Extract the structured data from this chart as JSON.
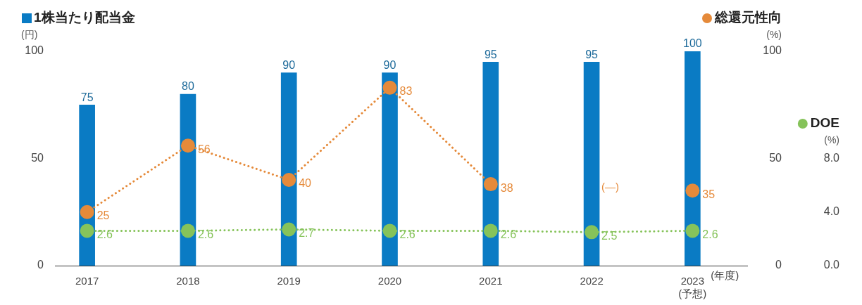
{
  "chart_data": {
    "type": "bar",
    "categories": [
      "2017",
      "2018",
      "2019",
      "2020",
      "2021",
      "2022",
      "2023\n(予想)"
    ],
    "xlabel": "(年度)",
    "ylabel": "(円)",
    "y2label": "(%)",
    "y3label": "(%)",
    "ylim": [
      0,
      100
    ],
    "yticks": [
      0,
      50,
      100
    ],
    "y2lim": [
      0,
      100
    ],
    "y2ticks": [
      0,
      50,
      100
    ],
    "y3lim": [
      0,
      16
    ],
    "y3ticks": [
      {
        "value": 0,
        "label": "0.0"
      },
      {
        "value": 4,
        "label": "4.0"
      },
      {
        "value": 8,
        "label": "8.0"
      }
    ],
    "series": [
      {
        "name": "1株当たり配当金",
        "color": "#0a7bc4",
        "values": [
          75,
          80,
          90,
          90,
          95,
          95,
          100
        ]
      },
      {
        "name": "総還元性向",
        "type": "line",
        "axis": "y2",
        "color": "#e58a3a",
        "values": [
          25,
          56,
          40,
          83,
          38,
          null,
          35
        ]
      },
      {
        "name": "DOE",
        "type": "line",
        "axis": "y3",
        "color": "#86c35a",
        "values": [
          2.6,
          2.6,
          2.7,
          2.6,
          2.6,
          2.5,
          2.6
        ]
      }
    ],
    "marker": "circle",
    "line_style": "dotted",
    "data_labels": true,
    "grid": false,
    "legend": "top",
    "annotations": [
      "(—)"
    ]
  }
}
